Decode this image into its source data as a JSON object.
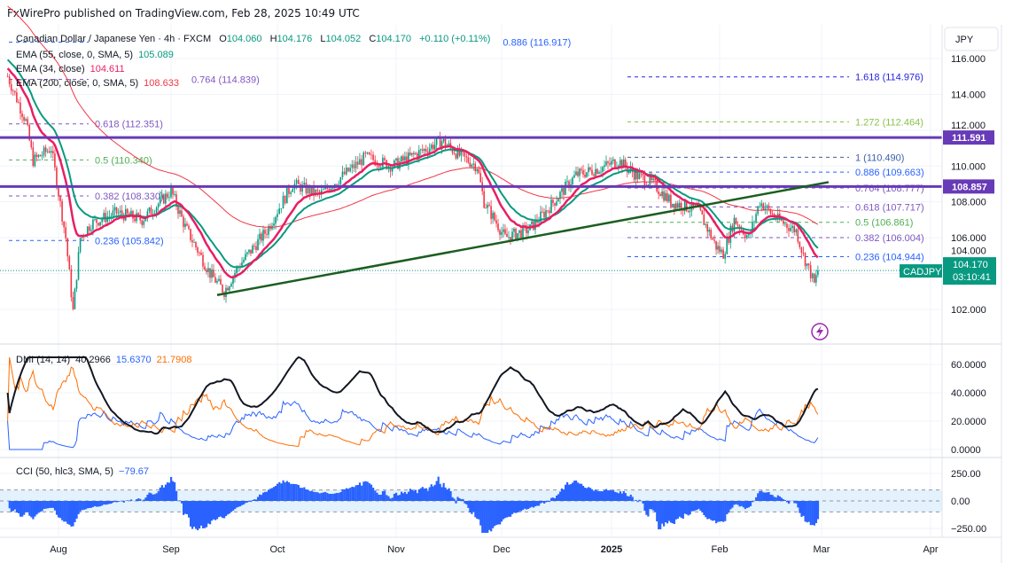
{
  "header": {
    "published": "FxWirePro published on TradingView.com, Feb 28, 2025 10:49 UTC"
  },
  "legend": {
    "symbol": "Canadian Dollar / Japanese Yen · 4h · FXCM",
    "o_label": "O",
    "o": "104.060",
    "h_label": "H",
    "h": "104.176",
    "l_label": "L",
    "l": "104.052",
    "c_label": "C",
    "c": "104.170",
    "change": "+0.110 (+0.11%)",
    "ema55_label": "EMA (55, close, 0, SMA, 5)",
    "ema55_value": "105.089",
    "ema34_label": "EMA (34, close)",
    "ema34_value": "104.611",
    "ema200_label": "EMA (200, close, 0, SMA, 5)",
    "ema200_value": "108.633",
    "dmi_label": "DMI (14, 14)",
    "dmi_adx": "40.2966",
    "dmi_plus": "15.6370",
    "dmi_minus": "21.7908",
    "cci_label": "CCI (50, hlc3, SMA, 5)",
    "cci_value": "−79.67"
  },
  "price_axis": {
    "currency_button": "JPY",
    "ticks": [
      "116.000",
      "114.000",
      "112.000",
      "110.000",
      "108.000",
      "106.000",
      "104.000",
      "102.000"
    ],
    "symbol_tag": "CADJPY",
    "last_price": "104.170",
    "countdown": "03:10:41",
    "level_tags": [
      "111.591",
      "108.857"
    ]
  },
  "dmi_axis": {
    "ticks": [
      "60.0000",
      "40.0000",
      "20.0000",
      "0.0000"
    ]
  },
  "cci_axis": {
    "ticks": [
      "250.00",
      "0.00",
      "−250.00"
    ]
  },
  "time_axis": {
    "ticks": [
      "Aug",
      "Sep",
      "Oct",
      "Nov",
      "Dec",
      "2025",
      "Feb",
      "Mar",
      "Apr"
    ]
  },
  "colors": {
    "ema55": "#089981",
    "ema34": "#e91e63",
    "ema200": "#f23645",
    "up": "#089981",
    "down": "#f23645",
    "level": "#673ab7",
    "trend": "#1b5e20",
    "adx": "#131722",
    "plus_di": "#2962ff",
    "minus_di": "#ff6d00",
    "cci": "#2962ff",
    "cci_band": "#e3f2fd"
  },
  "annotations": {
    "fib_left": [
      {
        "label": "0.886 (116.917)",
        "price": 116.917,
        "color": "#2962ff"
      },
      {
        "label": "0.764 (114.839)",
        "price": 114.839,
        "color": "#7e57c2"
      },
      {
        "label": "0.618 (112.351)",
        "price": 112.351,
        "color": "#7e57c2"
      },
      {
        "label": "0.5 (110.340)",
        "price": 110.34,
        "color": "#4caf50"
      },
      {
        "label": "0.382 (108.330)",
        "price": 108.33,
        "color": "#7e57c2"
      },
      {
        "label": "0.236 (105.842)",
        "price": 105.842,
        "color": "#2962ff"
      }
    ],
    "fib_right": [
      {
        "label": "1.618 (114.976)",
        "price": 114.976,
        "color": "#2323e0"
      },
      {
        "label": "1.272 (112.464)",
        "price": 112.464,
        "color": "#8bc34a"
      },
      {
        "label": "1 (110.490)",
        "price": 110.49,
        "color": "#3a5fa8"
      },
      {
        "label": "0.886 (109.663)",
        "price": 109.663,
        "color": "#2962ff"
      },
      {
        "label": "0.764 (108.777)",
        "price": 108.777,
        "color": "#7e57c2"
      },
      {
        "label": "0.618 (107.717)",
        "price": 107.717,
        "color": "#7e57c2"
      },
      {
        "label": "0.5 (106.861)",
        "price": 106.861,
        "color": "#4caf50"
      },
      {
        "label": "0.382 (106.004)",
        "price": 106.004,
        "color": "#7e57c2"
      },
      {
        "label": "0.236 (104.944)",
        "price": 104.944,
        "color": "#2962ff"
      }
    ],
    "horizontal_levels": [
      111.591,
      108.857
    ],
    "trendline": [
      [
        "2024-09-14",
        102.8
      ],
      [
        "2025-03-03",
        109.1
      ]
    ]
  },
  "chart_data": {
    "type": "candlestick",
    "symbol": "CADJPY",
    "ylim": [
      101,
      117
    ],
    "approx_close_path": [
      [
        "2024-07-18",
        115.0
      ],
      [
        "2024-07-23",
        112.5
      ],
      [
        "2024-07-25",
        110.3
      ],
      [
        "2024-07-30",
        111.0
      ],
      [
        "2024-08-03",
        106.0
      ],
      [
        "2024-08-05",
        101.9
      ],
      [
        "2024-08-07",
        106.0
      ],
      [
        "2024-08-10",
        106.8
      ],
      [
        "2024-08-17",
        107.4
      ],
      [
        "2024-08-24",
        107.0
      ],
      [
        "2024-09-01",
        108.6
      ],
      [
        "2024-09-05",
        106.6
      ],
      [
        "2024-09-12",
        104.0
      ],
      [
        "2024-09-16",
        103.0
      ],
      [
        "2024-09-20",
        104.4
      ],
      [
        "2024-09-28",
        106.4
      ],
      [
        "2024-10-05",
        109.0
      ],
      [
        "2024-10-12",
        108.4
      ],
      [
        "2024-10-24",
        110.5
      ],
      [
        "2024-10-31",
        110.0
      ],
      [
        "2024-11-06",
        110.6
      ],
      [
        "2024-11-14",
        111.4
      ],
      [
        "2024-11-19",
        110.6
      ],
      [
        "2024-11-24",
        110.0
      ],
      [
        "2024-11-26",
        108.0
      ],
      [
        "2024-12-02",
        106.0
      ],
      [
        "2024-12-09",
        106.5
      ],
      [
        "2024-12-14",
        107.6
      ],
      [
        "2024-12-22",
        109.5
      ],
      [
        "2024-12-29",
        109.9
      ],
      [
        "2025-01-03",
        110.3
      ],
      [
        "2025-01-08",
        109.5
      ],
      [
        "2025-01-13",
        109.0
      ],
      [
        "2025-01-18",
        108.0
      ],
      [
        "2025-01-26",
        107.5
      ],
      [
        "2025-01-31",
        105.5
      ],
      [
        "2025-02-02",
        105.1
      ],
      [
        "2025-02-05",
        107.0
      ],
      [
        "2025-02-09",
        106.0
      ],
      [
        "2025-02-12",
        108.0
      ],
      [
        "2025-02-17",
        107.0
      ],
      [
        "2025-02-22",
        106.4
      ],
      [
        "2025-02-24",
        105.0
      ],
      [
        "2025-02-26",
        104.0
      ],
      [
        "2025-02-27",
        103.4
      ],
      [
        "2025-02-28",
        104.17
      ]
    ]
  }
}
